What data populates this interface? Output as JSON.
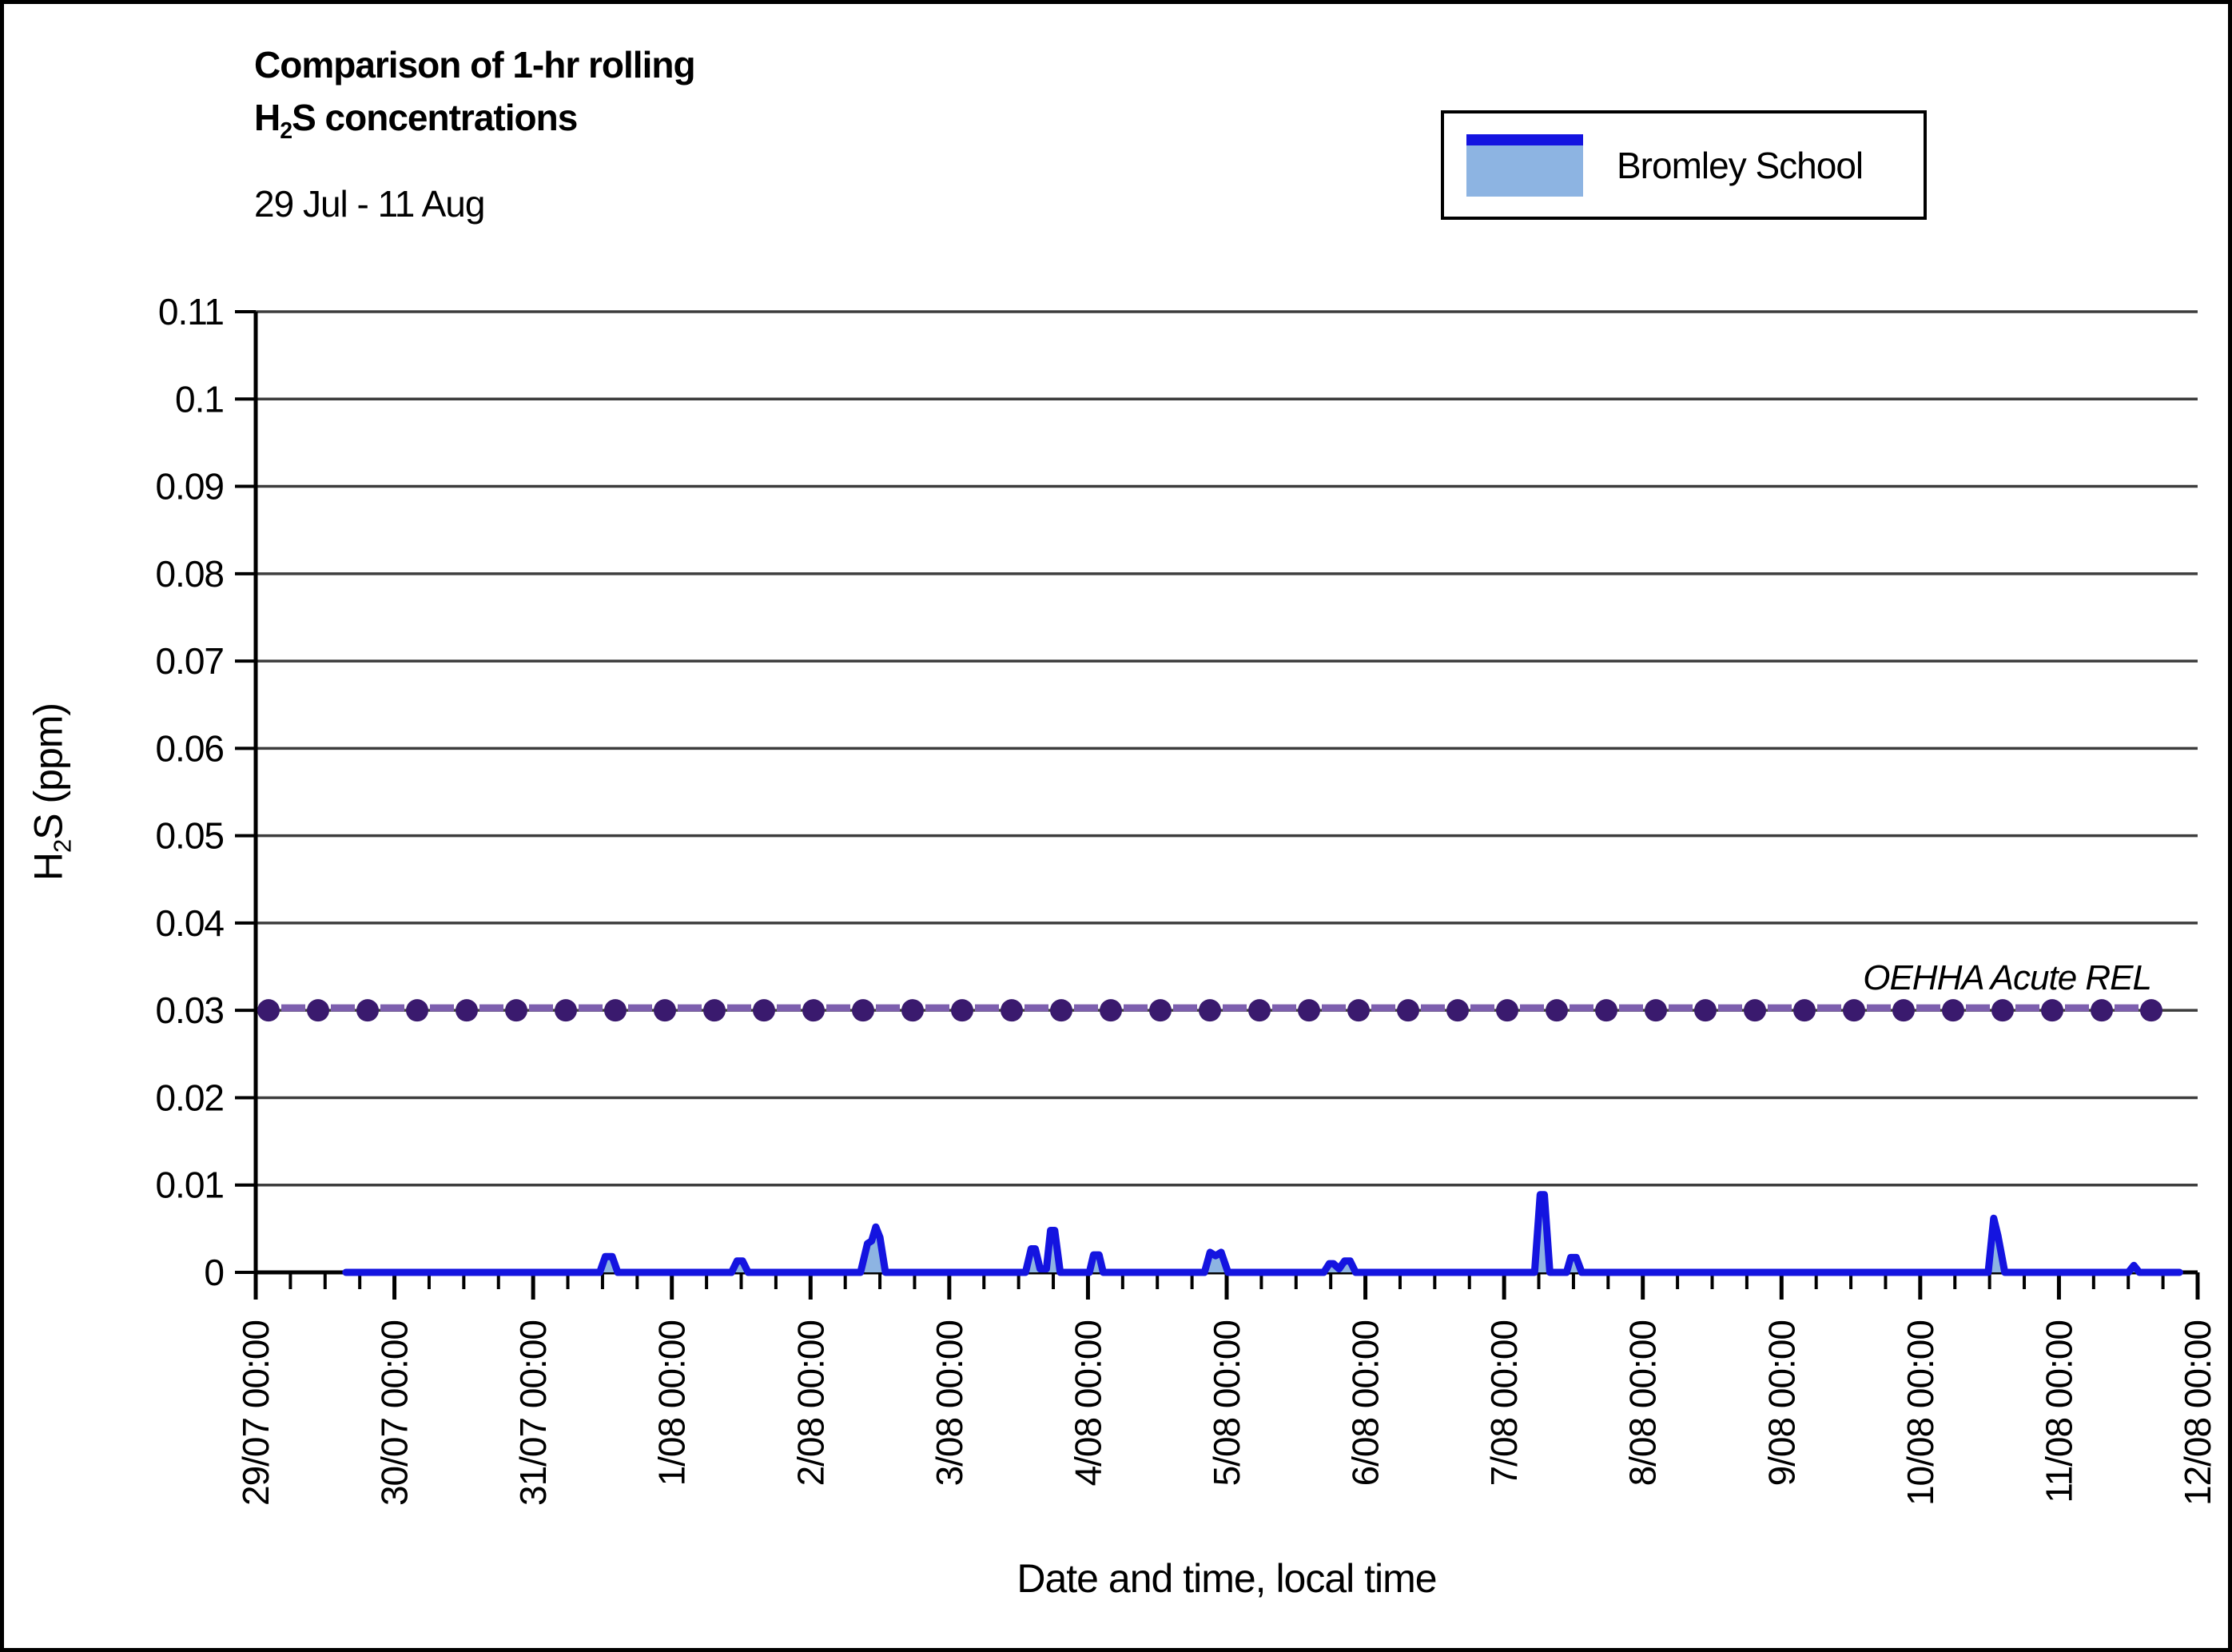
{
  "title": {
    "line1": "Comparison of 1-hr rolling",
    "h": "H",
    "sub": "2",
    "rest": "S concentrations",
    "subtitle": "29 Jul - 11 Aug"
  },
  "legend": {
    "label": "Bromley School",
    "line_color": "#1414e0",
    "fill_color": "#8db4e2"
  },
  "x_axis_title": "Date and time, local time",
  "y_axis_title": {
    "h": "H",
    "sub": "2",
    "rest": "S (ppm)"
  },
  "chart_data": {
    "type": "line",
    "title": "Comparison of 1-hr rolling H2S concentrations",
    "subtitle": "29 Jul - 11 Aug",
    "xlabel": "Date and time, local time",
    "ylabel": "H2S (ppm)",
    "ylim": [
      0,
      0.11
    ],
    "grid": "horizontal",
    "grid_color": "#3d3d3d",
    "legend_position": "top-right",
    "y_tick_values": [
      0,
      0.01,
      0.02,
      0.03,
      0.04,
      0.05,
      0.06,
      0.07,
      0.08,
      0.09,
      0.1,
      0.11
    ],
    "y_tick_labels": [
      "0",
      "0.01",
      "0.02",
      "0.03",
      "0.04",
      "0.05",
      "0.06",
      "0.07",
      "0.08",
      "0.09",
      "0.1",
      "0.11"
    ],
    "x_days_total": 14,
    "x_minor_ticks_per_day": 3,
    "x_tick_labels": [
      "29/07 00:00",
      "30/07 00:00",
      "31/07 00:00",
      "1/08 00:00",
      "2/08 00:00",
      "3/08 00:00",
      "4/08 00:00",
      "5/08 00:00",
      "6/08 00:00",
      "7/08 00:00",
      "8/08 00:00",
      "9/08 00:00",
      "10/08 00:00",
      "11/08 00:00",
      "12/08 00:00"
    ],
    "x_unit": "days since 29/07 00:00, local time",
    "series": [
      {
        "name": "Bromley School",
        "style": "area-line",
        "line_color": "#1414e0",
        "fill_color": "#8db4e2",
        "points": [
          [
            0.65,
            0
          ],
          [
            2.48,
            0
          ],
          [
            2.52,
            0.0018
          ],
          [
            2.57,
            0.0018
          ],
          [
            2.61,
            0
          ],
          [
            3.43,
            0
          ],
          [
            3.47,
            0.0013
          ],
          [
            3.51,
            0.0013
          ],
          [
            3.55,
            0
          ],
          [
            4.36,
            0
          ],
          [
            4.41,
            0.0033
          ],
          [
            4.44,
            0.0036
          ],
          [
            4.47,
            0.0052
          ],
          [
            4.5,
            0.004
          ],
          [
            4.54,
            0
          ],
          [
            5.55,
            0
          ],
          [
            5.59,
            0.0027
          ],
          [
            5.62,
            0.0027
          ],
          [
            5.655,
            0.0004
          ],
          [
            5.7,
            0.0004
          ],
          [
            5.73,
            0.0048
          ],
          [
            5.76,
            0.0048
          ],
          [
            5.8,
            0
          ],
          [
            6.01,
            0
          ],
          [
            6.04,
            0.002
          ],
          [
            6.08,
            0.002
          ],
          [
            6.11,
            0
          ],
          [
            6.84,
            0
          ],
          [
            6.88,
            0.0023
          ],
          [
            6.92,
            0.0019
          ],
          [
            6.96,
            0.0023
          ],
          [
            7.01,
            0
          ],
          [
            7.7,
            0
          ],
          [
            7.74,
            0.001
          ],
          [
            7.77,
            0.001
          ],
          [
            7.81,
            0.0004
          ],
          [
            7.85,
            0.0013
          ],
          [
            7.89,
            0.0013
          ],
          [
            7.93,
            0
          ],
          [
            9.22,
            0
          ],
          [
            9.26,
            0.0089
          ],
          [
            9.29,
            0.0089
          ],
          [
            9.33,
            0
          ],
          [
            9.45,
            0
          ],
          [
            9.48,
            0.0017
          ],
          [
            9.52,
            0.0017
          ],
          [
            9.56,
            0
          ],
          [
            12.49,
            0
          ],
          [
            12.53,
            0.0062
          ],
          [
            12.56,
            0.0042
          ],
          [
            12.61,
            0
          ],
          [
            13.5,
            0
          ],
          [
            13.54,
            0.0008
          ],
          [
            13.58,
            0
          ],
          [
            13.87,
            0
          ]
        ]
      }
    ],
    "reference_line": {
      "label": "OEHHA Acute REL",
      "value": 0.03,
      "style": "dashed-with-circle-markers",
      "marker_color": "#3a1a6e",
      "dash_color": "#7d5fae",
      "line_color": "#3d3d3d"
    }
  }
}
